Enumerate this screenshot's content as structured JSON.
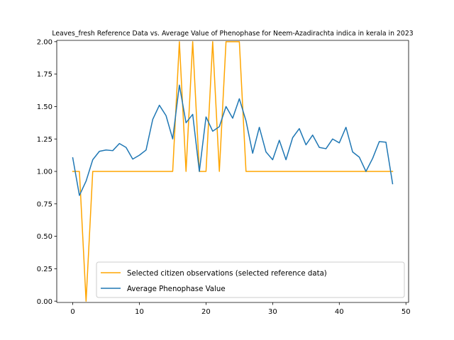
{
  "chart_data": {
    "type": "line",
    "title": "Leaves_fresh Reference Data vs. Average Value of Phenophase for Neem-Azadirachta indica in kerala in 2023",
    "xlabel": "",
    "ylabel": "",
    "xlim": [
      -2.4,
      50.4
    ],
    "ylim": [
      -0.01,
      2.01
    ],
    "x_ticks": [
      0,
      10,
      20,
      30,
      40,
      50
    ],
    "y_ticks": [
      0.0,
      0.25,
      0.5,
      0.75,
      1.0,
      1.25,
      1.5,
      1.75,
      2.0
    ],
    "x_tick_labels": [
      "0",
      "10",
      "20",
      "30",
      "40",
      "50"
    ],
    "y_tick_labels": [
      "0.00",
      "0.25",
      "0.50",
      "0.75",
      "1.00",
      "1.25",
      "1.50",
      "1.75",
      "2.00"
    ],
    "grid": false,
    "legend_position": "lower-right",
    "x": [
      0,
      1,
      2,
      3,
      4,
      5,
      6,
      7,
      8,
      9,
      10,
      11,
      12,
      13,
      14,
      15,
      16,
      17,
      18,
      19,
      20,
      21,
      22,
      23,
      24,
      25,
      26,
      27,
      28,
      29,
      30,
      31,
      32,
      33,
      34,
      35,
      36,
      37,
      38,
      39,
      40,
      41,
      42,
      43,
      44,
      45,
      46,
      47,
      48
    ],
    "series": [
      {
        "name": "Selected citizen observations (selected reference data)",
        "color": "#ffa500",
        "values": [
          1,
          1,
          0,
          1,
          1,
          1,
          1,
          1,
          1,
          1,
          1,
          1,
          1,
          1,
          1,
          1,
          2,
          1,
          2,
          1,
          1,
          2,
          1,
          2,
          2,
          2,
          1,
          1,
          1,
          1,
          1,
          1,
          1,
          1,
          1,
          1,
          1,
          1,
          1,
          1,
          1,
          1,
          1,
          1,
          1,
          1,
          1,
          1,
          1
        ]
      },
      {
        "name": "Average Phenophase Value",
        "color": "#1f77b4",
        "values": [
          1.105,
          0.815,
          0.925,
          1.09,
          1.155,
          1.165,
          1.16,
          1.215,
          1.185,
          1.095,
          1.125,
          1.165,
          1.4,
          1.51,
          1.43,
          1.25,
          1.665,
          1.375,
          1.44,
          1.0,
          1.42,
          1.31,
          1.345,
          1.5,
          1.41,
          1.56,
          1.39,
          1.14,
          1.34,
          1.15,
          1.09,
          1.24,
          1.09,
          1.26,
          1.33,
          1.205,
          1.28,
          1.185,
          1.175,
          1.25,
          1.22,
          1.34,
          1.15,
          1.11,
          1.0,
          1.1,
          1.23,
          1.225,
          0.905
        ]
      }
    ]
  }
}
